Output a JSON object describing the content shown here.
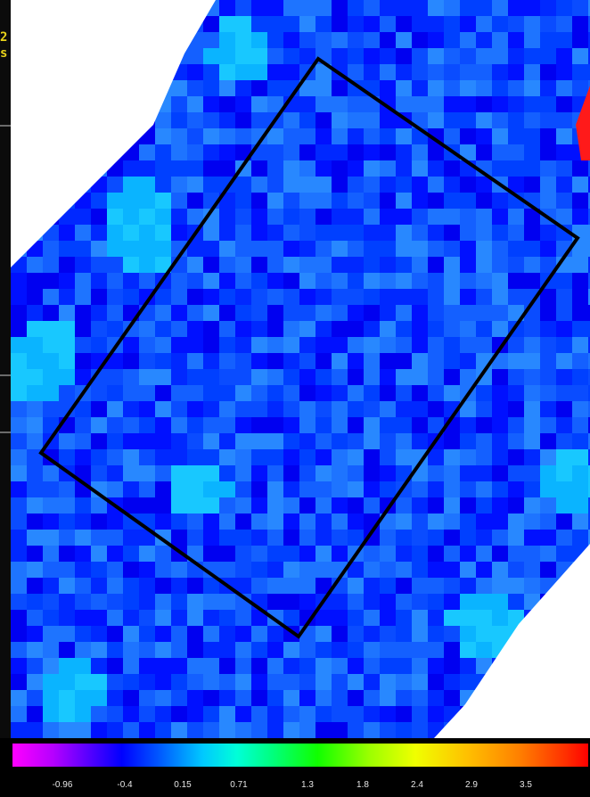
{
  "left_strip": {
    "fragment_1": "2",
    "fragment_2": "s"
  },
  "map": {
    "colormap": "spectral",
    "background_color": "#ffffff",
    "region_outline_color": "#000000",
    "marker_color": "#ff1a1a"
  },
  "colorbar": {
    "ticks": [
      "-0.96",
      "-0.4",
      "0.15",
      "0.71",
      "1.3",
      "1.8",
      "2.4",
      "2.9",
      "3.5"
    ]
  }
}
